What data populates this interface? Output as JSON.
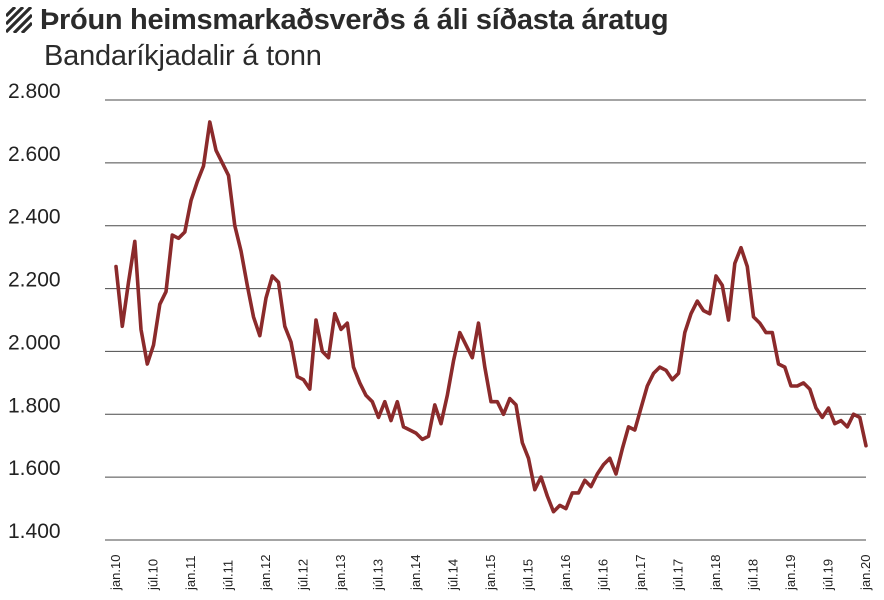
{
  "header": {
    "title": "Þróun heimsmarkaðsverðs á áli síðasta áratug",
    "subtitle": "Bandaríkjadalir á tonn",
    "icon": "hatch-icon"
  },
  "colors": {
    "line": "#8b2a2b",
    "grid": "#4a4a4a",
    "text": "#222222"
  },
  "chart_data": {
    "type": "line",
    "title": "Þróun heimsmarkaðsverðs á áli síðasta áratug",
    "subtitle": "Bandaríkjadalir á tonn",
    "xlabel": "",
    "ylabel": "",
    "ylim": [
      1400,
      2800
    ],
    "yticks": [
      1400,
      1600,
      1800,
      2000,
      2200,
      2400,
      2600,
      2800
    ],
    "ytick_labels": [
      "1.400",
      "1.600",
      "1.800",
      "2.000",
      "2.200",
      "2.400",
      "2.600",
      "2.800"
    ],
    "grid": true,
    "legend": "none",
    "x_start": "2010-01",
    "x_end": "2020-01",
    "xtick_labels": [
      "jan.10",
      "júl.10",
      "jan.11",
      "júl.11",
      "jan.12",
      "júl.12",
      "jan.13",
      "júl.13",
      "jan.14",
      "júl.14",
      "jan.15",
      "júl.15",
      "jan.16",
      "júl.16",
      "jan.17",
      "júl.17",
      "jan.18",
      "júl.18",
      "jan.19",
      "júl.19",
      "jan.20"
    ],
    "series": [
      {
        "values": [
          2270,
          2080,
          2220,
          2350,
          2070,
          1960,
          2020,
          2150,
          2190,
          2370,
          2360,
          2380,
          2480,
          2540,
          2590,
          2730,
          2640,
          2600,
          2560,
          2400,
          2320,
          2210,
          2110,
          2050,
          2170,
          2240,
          2220,
          2080,
          2030,
          1920,
          1910,
          1880,
          2100,
          2000,
          1980,
          2120,
          2070,
          2090,
          1950,
          1900,
          1860,
          1840,
          1790,
          1840,
          1780,
          1840,
          1760,
          1750,
          1740,
          1720,
          1730,
          1830,
          1770,
          1860,
          1970,
          2060,
          2020,
          1980,
          2090,
          1950,
          1840,
          1840,
          1800,
          1850,
          1830,
          1710,
          1660,
          1560,
          1600,
          1540,
          1490,
          1510,
          1500,
          1550,
          1550,
          1590,
          1570,
          1610,
          1640,
          1660,
          1610,
          1690,
          1760,
          1750,
          1820,
          1890,
          1930,
          1950,
          1940,
          1910,
          1930,
          2060,
          2120,
          2160,
          2130,
          2120,
          2240,
          2210,
          2100,
          2280,
          2330,
          2270,
          2110,
          2090,
          2060,
          2060,
          1960,
          1950,
          1890,
          1890,
          1900,
          1880,
          1820,
          1790,
          1820,
          1770,
          1780,
          1760,
          1800,
          1790,
          1700
        ]
      }
    ]
  }
}
